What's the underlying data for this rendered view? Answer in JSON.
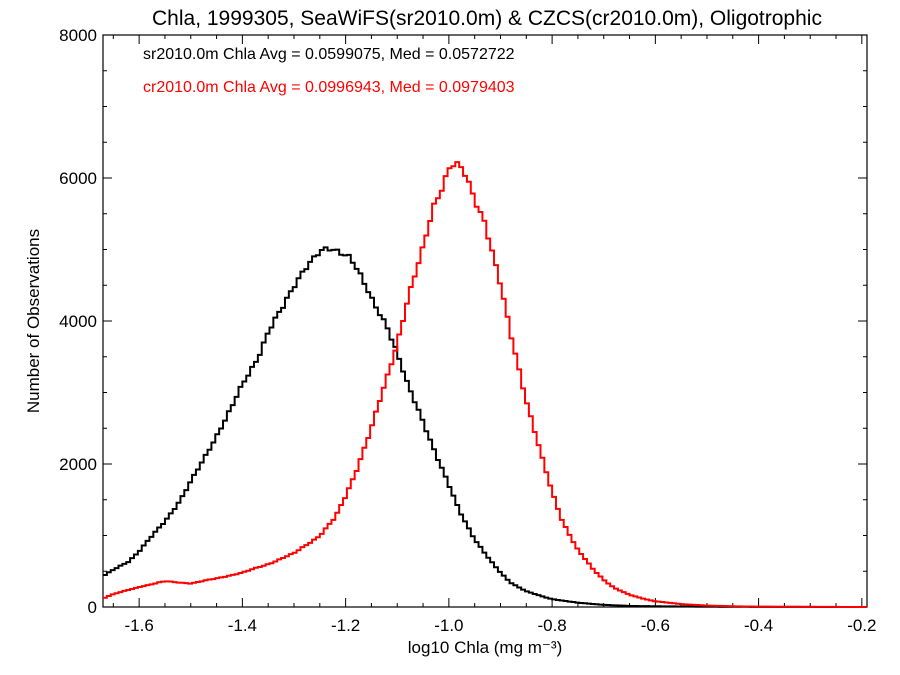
{
  "chart_data": {
    "type": "line",
    "title": "Chla, 1999305, SeaWiFS(sr2010.0m) & CZCS(cr2010.0m), Oligotrophic",
    "xlabel": "log10 Chla (mg m⁻³)",
    "ylabel": "Number of Observations",
    "xlim": [
      -1.67,
      -0.19
    ],
    "ylim": [
      0,
      8000
    ],
    "x_ticks": [
      -1.6,
      -1.4,
      -1.2,
      -1.0,
      -0.8,
      -0.6,
      -0.4,
      -0.2
    ],
    "x_tick_labels": [
      "-1.6",
      "-1.4",
      "-1.2",
      "-1.0",
      "-0.8",
      "-0.6",
      "-0.4",
      "-0.2"
    ],
    "y_ticks": [
      0,
      2000,
      4000,
      6000,
      8000
    ],
    "y_tick_labels": [
      "0",
      "2000",
      "4000",
      "6000",
      "8000"
    ],
    "annotations": [
      {
        "text": "sr2010.0m Chla Avg = 0.0599075, Med = 0.0572722",
        "color": "#000000"
      },
      {
        "text": "cr2010.0m Chla Avg = 0.0996943, Med = 0.0979403",
        "color": "#ff0000"
      }
    ],
    "series": [
      {
        "color": "#000000",
        "step": true,
        "x": [
          -1.67,
          -1.65,
          -1.62,
          -1.6,
          -1.58,
          -1.55,
          -1.52,
          -1.5,
          -1.48,
          -1.45,
          -1.42,
          -1.4,
          -1.37,
          -1.35,
          -1.32,
          -1.3,
          -1.28,
          -1.25,
          -1.23,
          -1.21,
          -1.2,
          -1.19,
          -1.17,
          -1.15,
          -1.12,
          -1.1,
          -1.08,
          -1.05,
          -1.02,
          -1.0,
          -0.98,
          -0.95,
          -0.92,
          -0.9,
          -0.88,
          -0.85,
          -0.82,
          -0.8,
          -0.75,
          -0.7,
          -0.65,
          -0.6,
          -0.5,
          -0.4,
          -0.3,
          -0.2
        ],
        "y": [
          430,
          520,
          640,
          780,
          950,
          1200,
          1500,
          1750,
          2000,
          2400,
          2800,
          3100,
          3500,
          3850,
          4200,
          4500,
          4750,
          4950,
          5000,
          4980,
          4950,
          4900,
          4600,
          4300,
          3950,
          3550,
          3100,
          2600,
          2050,
          1700,
          1350,
          950,
          650,
          480,
          340,
          220,
          150,
          110,
          60,
          30,
          15,
          10,
          5,
          2,
          1,
          0
        ]
      },
      {
        "color": "#ff0000",
        "step": true,
        "x": [
          -1.67,
          -1.65,
          -1.6,
          -1.55,
          -1.5,
          -1.45,
          -1.4,
          -1.35,
          -1.3,
          -1.25,
          -1.22,
          -1.2,
          -1.18,
          -1.15,
          -1.12,
          -1.1,
          -1.08,
          -1.05,
          -1.03,
          -1.01,
          -1.0,
          -0.99,
          -0.98,
          -0.97,
          -0.95,
          -0.93,
          -0.9,
          -0.88,
          -0.85,
          -0.82,
          -0.8,
          -0.78,
          -0.75,
          -0.72,
          -0.7,
          -0.68,
          -0.65,
          -0.62,
          -0.6,
          -0.55,
          -0.5,
          -0.45,
          -0.4,
          -0.3,
          -0.2
        ],
        "y": [
          120,
          180,
          280,
          360,
          330,
          400,
          480,
          600,
          750,
          1000,
          1250,
          1550,
          1900,
          2500,
          3200,
          3700,
          4300,
          5000,
          5600,
          5950,
          6150,
          6200,
          6150,
          6050,
          5700,
          5400,
          4500,
          3800,
          2900,
          2100,
          1600,
          1200,
          800,
          520,
          380,
          270,
          170,
          110,
          80,
          40,
          20,
          10,
          5,
          2,
          0
        ]
      }
    ]
  }
}
